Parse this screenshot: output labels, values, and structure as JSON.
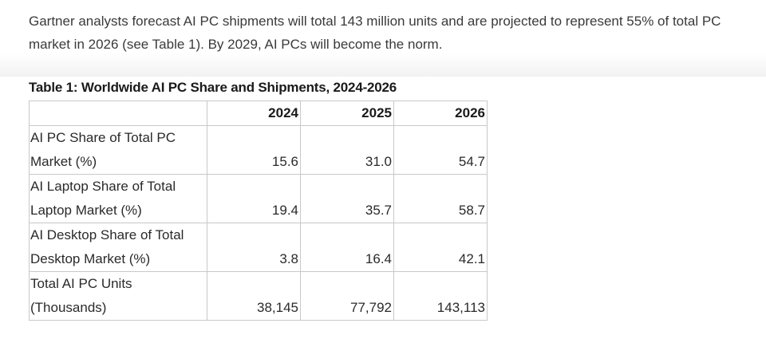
{
  "intro": {
    "text": "Gartner analysts forecast AI PC shipments will total 143 million units and are projected to represent 55% of total PC market in 2026 (see Table 1). By 2029, AI PCs will become the norm."
  },
  "table": {
    "title": "Table 1: Worldwide AI PC Share and Shipments, 2024-2026",
    "headers": [
      "",
      "2024",
      "2025",
      "2026"
    ],
    "rows": [
      {
        "label": "AI PC Share of Total PC Market (%)",
        "values": [
          "15.6",
          "31.0",
          "54.7"
        ]
      },
      {
        "label": "AI Laptop Share of Total Laptop Market (%)",
        "values": [
          "19.4",
          "35.7",
          "58.7"
        ]
      },
      {
        "label": "AI Desktop Share of Total Desktop Market (%)",
        "values": [
          "3.8",
          "16.4",
          "42.1"
        ]
      },
      {
        "label": "Total AI PC Units (Thousands)",
        "values": [
          "38,145",
          "77,792",
          "143,113"
        ]
      }
    ]
  }
}
